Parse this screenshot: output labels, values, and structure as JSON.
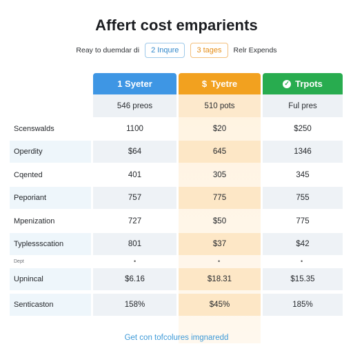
{
  "title": "Affert cost emparients",
  "filters": {
    "label": "Reay to duemdar di",
    "chip_blue": "2 Inqure",
    "chip_orange": "3 tages",
    "trailing": "Relr Expends"
  },
  "columns": [
    {
      "header": "1 Syeter",
      "sub": "546 preos",
      "color": "#3e96e4",
      "icon": "number-one"
    },
    {
      "header": "Tyetre",
      "sub": "510 pots",
      "color": "#f2a11f",
      "icon": "dollar-icon",
      "icon_glyph": "$"
    },
    {
      "header": "Trpots",
      "sub": "Ful pres",
      "color": "#28ac4f",
      "icon": "check-circle-icon",
      "icon_glyph": "✓"
    }
  ],
  "rows": [
    {
      "label": "Scenswalds",
      "values": [
        "1100",
        "$20",
        "$250"
      ]
    },
    {
      "label": "Operdity",
      "values": [
        "$64",
        "645",
        "1346"
      ]
    },
    {
      "label": "Cqented",
      "values": [
        "401",
        "305",
        "345"
      ]
    },
    {
      "label": "Peporiant",
      "values": [
        "757",
        "775",
        "755"
      ]
    },
    {
      "label": "Mpenization",
      "values": [
        "727",
        "$50",
        "775"
      ]
    },
    {
      "label": "Typlessscation",
      "values": [
        "801",
        "$37",
        "$42"
      ]
    }
  ],
  "separator": {
    "label": "Dept"
  },
  "rows_bottom": [
    {
      "label": "Upnincal",
      "values": [
        "$6.16",
        "$18.31",
        "$15.35"
      ]
    },
    {
      "label": "Senticaston",
      "values": [
        "158%",
        "$45%",
        "185%"
      ]
    }
  ],
  "footer_link": "Get con tofcolures imgnaredd"
}
